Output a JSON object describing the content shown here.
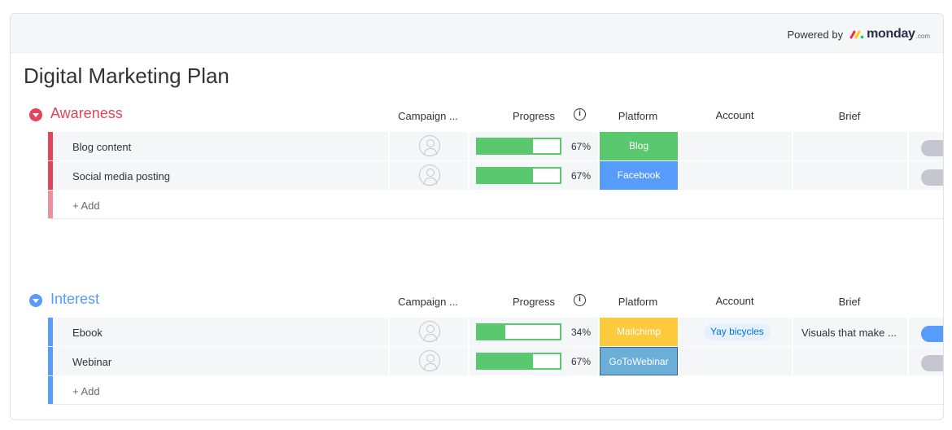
{
  "header": {
    "powered_by": "Powered by",
    "logo_word": "monday",
    "logo_suffix": ".com"
  },
  "page_title": "Digital Marketing Plan",
  "columns": {
    "owner": "Campaign ...",
    "progress": "Progress",
    "info": "i",
    "platform": "Platform",
    "account": "Account",
    "brief": "Brief"
  },
  "groups": [
    {
      "title": "Awareness",
      "color": "#e2445c",
      "add_label": "+ Add",
      "rows": [
        {
          "name": "Blog content",
          "progress": 67,
          "progress_label": "67%",
          "platform": "Blog",
          "platform_color": "#5ac86e",
          "account": "",
          "brief": "",
          "toggle_on": false
        },
        {
          "name": "Social media posting",
          "progress": 67,
          "progress_label": "67%",
          "platform": "Facebook",
          "platform_color": "#579bfc",
          "account": "",
          "brief": "",
          "toggle_on": false
        }
      ]
    },
    {
      "title": "Interest",
      "color": "#579bfc",
      "add_label": "+ Add",
      "rows": [
        {
          "name": "Ebook",
          "progress": 34,
          "progress_label": "34%",
          "platform": "Mailchimp",
          "platform_color": "#fdc93d",
          "account": "Yay bicycles",
          "brief": "Visuals that make ...",
          "toggle_on": true
        },
        {
          "name": "Webinar",
          "progress": 67,
          "progress_label": "67%",
          "platform": "GoToWebinar",
          "platform_color": "#6bafd9",
          "account": "",
          "brief": "",
          "toggle_on": false
        }
      ]
    }
  ]
}
